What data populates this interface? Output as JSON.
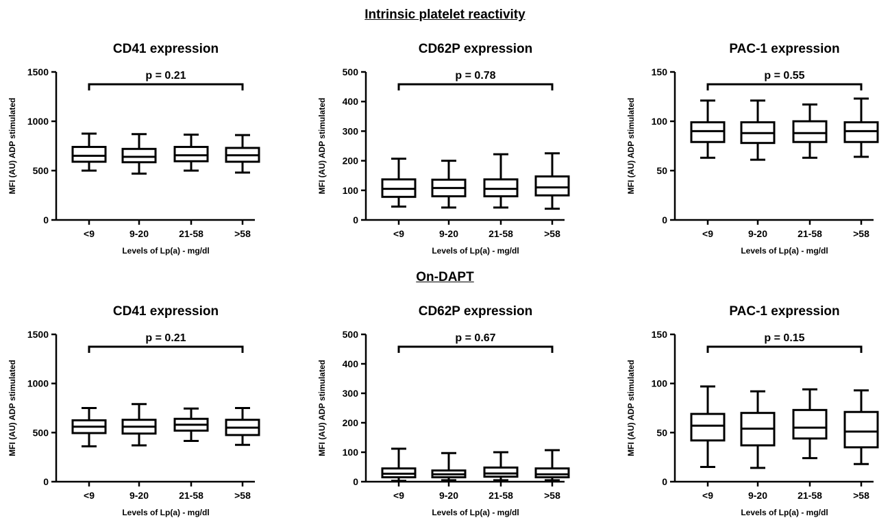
{
  "sections": {
    "intrinsic": "Intrinsic platelet reactivity",
    "ondapt": "On-DAPT"
  },
  "chart_data": [
    {
      "type": "box",
      "section": "Intrinsic platelet reactivity",
      "title": "CD41 expression",
      "xlabel": "Levels of Lp(a) - mg/dl",
      "ylabel": "MFI (AU) ADP stimulated",
      "ylim": [
        0,
        1500
      ],
      "yticks": [
        0,
        500,
        1000,
        1500
      ],
      "annotation": "p = 0.21",
      "categories": [
        "<9",
        "9-20",
        "21-58",
        ">58"
      ],
      "boxes": [
        {
          "min": 500,
          "q1": 590,
          "median": 650,
          "q3": 740,
          "max": 875
        },
        {
          "min": 470,
          "q1": 585,
          "median": 640,
          "q3": 720,
          "max": 870
        },
        {
          "min": 500,
          "q1": 595,
          "median": 655,
          "q3": 740,
          "max": 865
        },
        {
          "min": 480,
          "q1": 590,
          "median": 655,
          "q3": 730,
          "max": 860
        }
      ]
    },
    {
      "type": "box",
      "section": "Intrinsic platelet reactivity",
      "title": "CD62P expression",
      "xlabel": "Levels of Lp(a) - mg/dl",
      "ylabel": "MFI (AU) ADP stimulated",
      "ylim": [
        0,
        500
      ],
      "yticks": [
        0,
        100,
        200,
        300,
        400,
        500
      ],
      "annotation": "p = 0.78",
      "categories": [
        "<9",
        "9-20",
        "21-58",
        ">58"
      ],
      "boxes": [
        {
          "min": 45,
          "q1": 78,
          "median": 105,
          "q3": 137,
          "max": 207
        },
        {
          "min": 42,
          "q1": 80,
          "median": 108,
          "q3": 136,
          "max": 200
        },
        {
          "min": 42,
          "q1": 80,
          "median": 105,
          "q3": 137,
          "max": 222
        },
        {
          "min": 38,
          "q1": 83,
          "median": 110,
          "q3": 147,
          "max": 225
        }
      ]
    },
    {
      "type": "box",
      "section": "Intrinsic platelet reactivity",
      "title": "PAC-1 expression",
      "xlabel": "Levels of Lp(a) - mg/dl",
      "ylabel": "MFI (AU) ADP stimulated",
      "ylim": [
        0,
        150
      ],
      "yticks": [
        0,
        50,
        100,
        150
      ],
      "annotation": "p = 0.55",
      "categories": [
        "<9",
        "9-20",
        "21-58",
        ">58"
      ],
      "boxes": [
        {
          "min": 63,
          "q1": 79,
          "median": 90,
          "q3": 99,
          "max": 121
        },
        {
          "min": 61,
          "q1": 78,
          "median": 88,
          "q3": 99,
          "max": 121
        },
        {
          "min": 63,
          "q1": 79,
          "median": 88,
          "q3": 100,
          "max": 117
        },
        {
          "min": 64,
          "q1": 79,
          "median": 90,
          "q3": 99,
          "max": 123
        }
      ]
    },
    {
      "type": "box",
      "section": "On-DAPT",
      "title": "CD41 expression",
      "xlabel": "Levels of Lp(a) - mg/dl",
      "ylabel": "MFI (AU) ADP stimulated",
      "ylim": [
        0,
        1500
      ],
      "yticks": [
        0,
        500,
        1000,
        1500
      ],
      "annotation": "p = 0.21",
      "categories": [
        "<9",
        "9-20",
        "21-58",
        ">58"
      ],
      "boxes": [
        {
          "min": 360,
          "q1": 495,
          "median": 560,
          "q3": 625,
          "max": 750
        },
        {
          "min": 370,
          "q1": 490,
          "median": 560,
          "q3": 630,
          "max": 790
        },
        {
          "min": 415,
          "q1": 520,
          "median": 580,
          "q3": 640,
          "max": 745
        },
        {
          "min": 375,
          "q1": 475,
          "median": 550,
          "q3": 630,
          "max": 750
        }
      ]
    },
    {
      "type": "box",
      "section": "On-DAPT",
      "title": "CD62P expression",
      "xlabel": "Levels of Lp(a) - mg/dl",
      "ylabel": "MFI (AU) ADP stimulated",
      "ylim": [
        0,
        500
      ],
      "yticks": [
        0,
        100,
        200,
        300,
        400,
        500
      ],
      "annotation": "p = 0.67",
      "categories": [
        "<9",
        "9-20",
        "21-58",
        ">58"
      ],
      "boxes": [
        {
          "min": 3,
          "q1": 15,
          "median": 27,
          "q3": 45,
          "max": 112
        },
        {
          "min": 5,
          "q1": 15,
          "median": 25,
          "q3": 38,
          "max": 97
        },
        {
          "min": 5,
          "q1": 17,
          "median": 28,
          "q3": 48,
          "max": 100
        },
        {
          "min": 5,
          "q1": 15,
          "median": 25,
          "q3": 45,
          "max": 107
        }
      ]
    },
    {
      "type": "box",
      "section": "On-DAPT",
      "title": "PAC-1 expression",
      "xlabel": "Levels of Lp(a) - mg/dl",
      "ylabel": "MFI (AU) ADP stimulated",
      "ylim": [
        0,
        150
      ],
      "yticks": [
        0,
        50,
        100,
        150
      ],
      "annotation": "p = 0.15",
      "categories": [
        "<9",
        "9-20",
        "21-58",
        ">58"
      ],
      "boxes": [
        {
          "min": 15,
          "q1": 42,
          "median": 57,
          "q3": 69,
          "max": 97
        },
        {
          "min": 14,
          "q1": 37,
          "median": 54,
          "q3": 70,
          "max": 92
        },
        {
          "min": 24,
          "q1": 44,
          "median": 55,
          "q3": 73,
          "max": 94
        },
        {
          "min": 18,
          "q1": 35,
          "median": 51,
          "q3": 71,
          "max": 93
        }
      ]
    }
  ]
}
